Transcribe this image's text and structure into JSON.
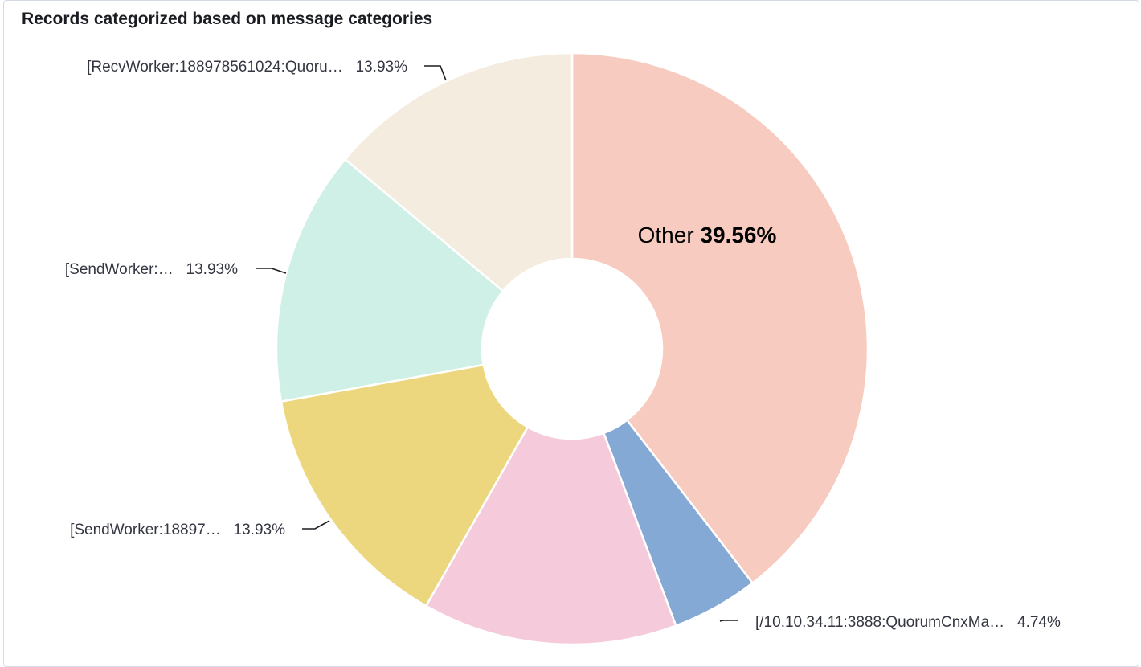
{
  "panel": {
    "title": "Records categorized based on message categories"
  },
  "chart_data": {
    "type": "pie",
    "donut": true,
    "title": "Records categorized based on message categories",
    "slices": [
      {
        "label": "Other",
        "value": 39.56,
        "display": "39.56%",
        "color": "#f7cbbf"
      },
      {
        "label": "[/10.10.34.11:3888:QuorumCnxMa…",
        "value": 4.74,
        "display": "4.74%",
        "color": "#85a9d5"
      },
      {
        "label": "",
        "value": 13.93,
        "display": "",
        "color": "#f5cbdc"
      },
      {
        "label": "[SendWorker:18897…",
        "value": 13.93,
        "display": "13.93%",
        "color": "#edd77e"
      },
      {
        "label": "[SendWorker:…",
        "value": 13.93,
        "display": "13.93%",
        "color": "#cef0e6"
      },
      {
        "label": "[RecvWorker:188978561024:Quoru…",
        "value": 13.93,
        "display": "13.93%",
        "color": "#f5ece0"
      }
    ]
  }
}
